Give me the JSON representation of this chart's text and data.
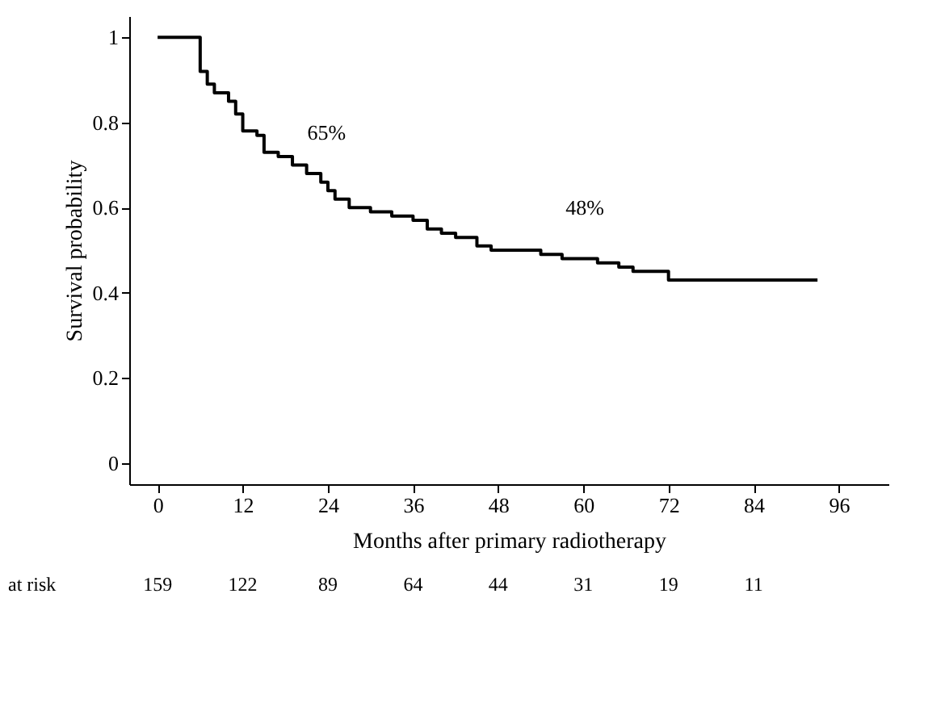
{
  "chart_data": {
    "type": "step",
    "xlabel": "Months after primary radiotherapy",
    "ylabel": "Survival probability",
    "x": [
      0,
      6,
      7,
      8,
      10,
      11,
      12,
      14,
      15,
      17,
      19,
      21,
      23,
      24,
      25,
      27,
      30,
      33,
      36,
      38,
      40,
      42,
      45,
      47,
      54,
      57,
      62,
      65,
      67,
      72,
      93
    ],
    "series": [
      {
        "color": "#000000",
        "values": [
          1,
          0.92,
          0.89,
          0.87,
          0.85,
          0.82,
          0.78,
          0.77,
          0.73,
          0.72,
          0.7,
          0.68,
          0.66,
          0.64,
          0.62,
          0.6,
          0.59,
          0.58,
          0.57,
          0.55,
          0.54,
          0.53,
          0.51,
          0.5,
          0.49,
          0.48,
          0.47,
          0.46,
          0.45,
          0.43,
          0.43
        ]
      }
    ],
    "xlim": [
      -4,
      103
    ],
    "xticks": [
      0,
      12,
      24,
      36,
      48,
      60,
      72,
      84,
      96
    ],
    "ylim": [
      -0.05,
      1.05
    ],
    "yticks": [
      0,
      0.2,
      0.4,
      0.6,
      0.8,
      1
    ],
    "annotations": [
      "65%",
      "48%",
      "at risk",
      "159",
      "122",
      "89",
      "64",
      "44",
      "31",
      "19",
      "11"
    ],
    "grid": false
  }
}
